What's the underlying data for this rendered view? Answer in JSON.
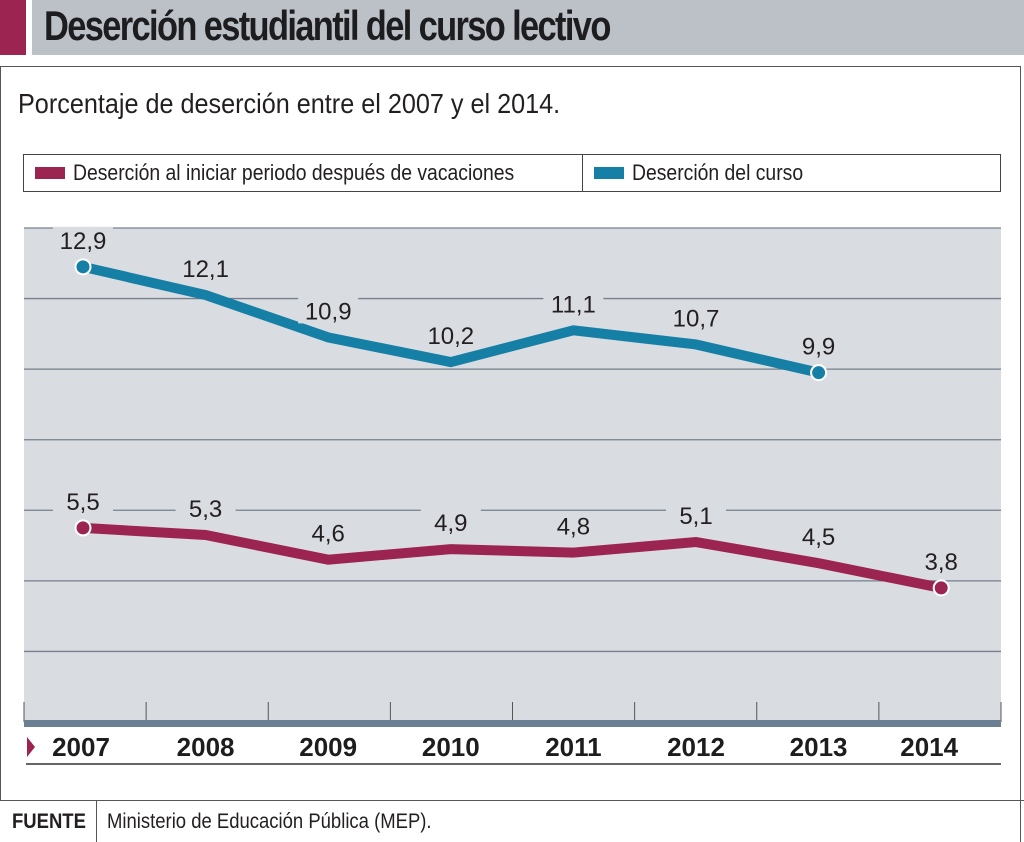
{
  "header": {
    "title": "Deserción estudiantil del curso lectivo",
    "subtitle": "Porcentaje de deserción entre el 2007 y el 2014."
  },
  "colors": {
    "accent": "#9b2450",
    "series_vacaciones": "#9b2450",
    "series_curso": "#157fa6",
    "plot_background": "#d9dce1",
    "title_bar": "#bcc1c8",
    "axis_bar": "#6b7f92"
  },
  "legend": [
    {
      "label": "Deserción al iniciar periodo después de vacaciones",
      "color": "#9b2450"
    },
    {
      "label": "Deserción del curso",
      "color": "#157fa6"
    }
  ],
  "footer": {
    "label": "FUENTE",
    "text": "Ministerio de Educación Pública (MEP)."
  },
  "chart_data": {
    "type": "line",
    "title": "Deserción estudiantil del curso lectivo",
    "subtitle": "Porcentaje de deserción entre el 2007 y el 2014.",
    "xlabel": "",
    "ylabel": "",
    "x": [
      "2007",
      "2008",
      "2009",
      "2010",
      "2011",
      "2012",
      "2013",
      "2014"
    ],
    "ylim": [
      0,
      14
    ],
    "yticks": [
      0,
      2,
      4,
      6,
      8,
      10,
      12,
      14
    ],
    "grid": true,
    "legend_position": "top",
    "series": [
      {
        "name": "Deserción del curso",
        "color": "#157fa6",
        "values": [
          12.9,
          12.1,
          10.9,
          10.2,
          11.1,
          10.7,
          9.9,
          null
        ],
        "labels": [
          "12,9",
          "12,1",
          "10,9",
          "10,2",
          "11,1",
          "10,7",
          "9,9",
          null
        ]
      },
      {
        "name": "Deserción al iniciar periodo después de vacaciones",
        "color": "#9b2450",
        "values": [
          5.5,
          5.3,
          4.6,
          4.9,
          4.8,
          5.1,
          4.5,
          3.8
        ],
        "labels": [
          "5,5",
          "5,3",
          "4,6",
          "4,9",
          "4,8",
          "5,1",
          "4,5",
          "3,8"
        ]
      }
    ]
  }
}
